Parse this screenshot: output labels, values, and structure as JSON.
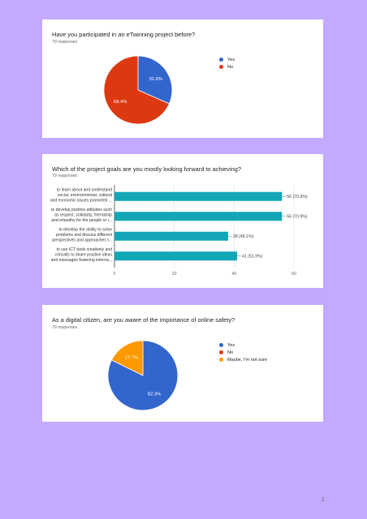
{
  "page_number": "2",
  "chart_data": [
    {
      "type": "pie",
      "title": "Have you participated in an eTwinning project before?",
      "subtitle": "79 responses",
      "series": [
        {
          "name": "Yes",
          "value": 31.6,
          "label": "31.6%",
          "color": "#3366cc"
        },
        {
          "name": "No",
          "value": 68.4,
          "label": "68.4%",
          "color": "#dc3912"
        }
      ]
    },
    {
      "type": "bar",
      "orientation": "horizontal",
      "title": "Which of the project goals are you mostly looking forward to achieving?",
      "subtitle": "79 responses",
      "color": "#12a6b6",
      "xlim": [
        0,
        60
      ],
      "ticks": [
        0,
        20,
        40,
        60
      ],
      "grid": true,
      "categories": [
        [
          "to learn about and understand",
          "social, environmental, cultural",
          "and economic issues promoted ..."
        ],
        [
          "to develop positive attitudes such",
          "as respect, solidarity, friendship",
          "and empathy for the people or i..."
        ],
        [
          "to develop the ability to solve",
          "problems and discuss different",
          "perspectives and approaches t..."
        ],
        [
          "to use ICT tools creatively and",
          "critically to share positive ideas",
          "and messages fostering interna..."
        ]
      ],
      "values": [
        56,
        56,
        38,
        41
      ],
      "value_labels": [
        "56 (70.9%)",
        "56 (70.9%)",
        "38 (48.1%)",
        "41 (51.9%)"
      ]
    },
    {
      "type": "pie",
      "title": "As a digital citizen, are you aware of the importance of online safety?",
      "subtitle": "79 responses",
      "series": [
        {
          "name": "Yes",
          "value": 82.3,
          "label": "82.3%",
          "color": "#3366cc"
        },
        {
          "name": "No",
          "value": 0,
          "label": "",
          "color": "#dc3912"
        },
        {
          "name": "Maybe, I'm not sure",
          "value": 17.7,
          "label": "17.7%",
          "color": "#ff9900"
        }
      ]
    }
  ]
}
